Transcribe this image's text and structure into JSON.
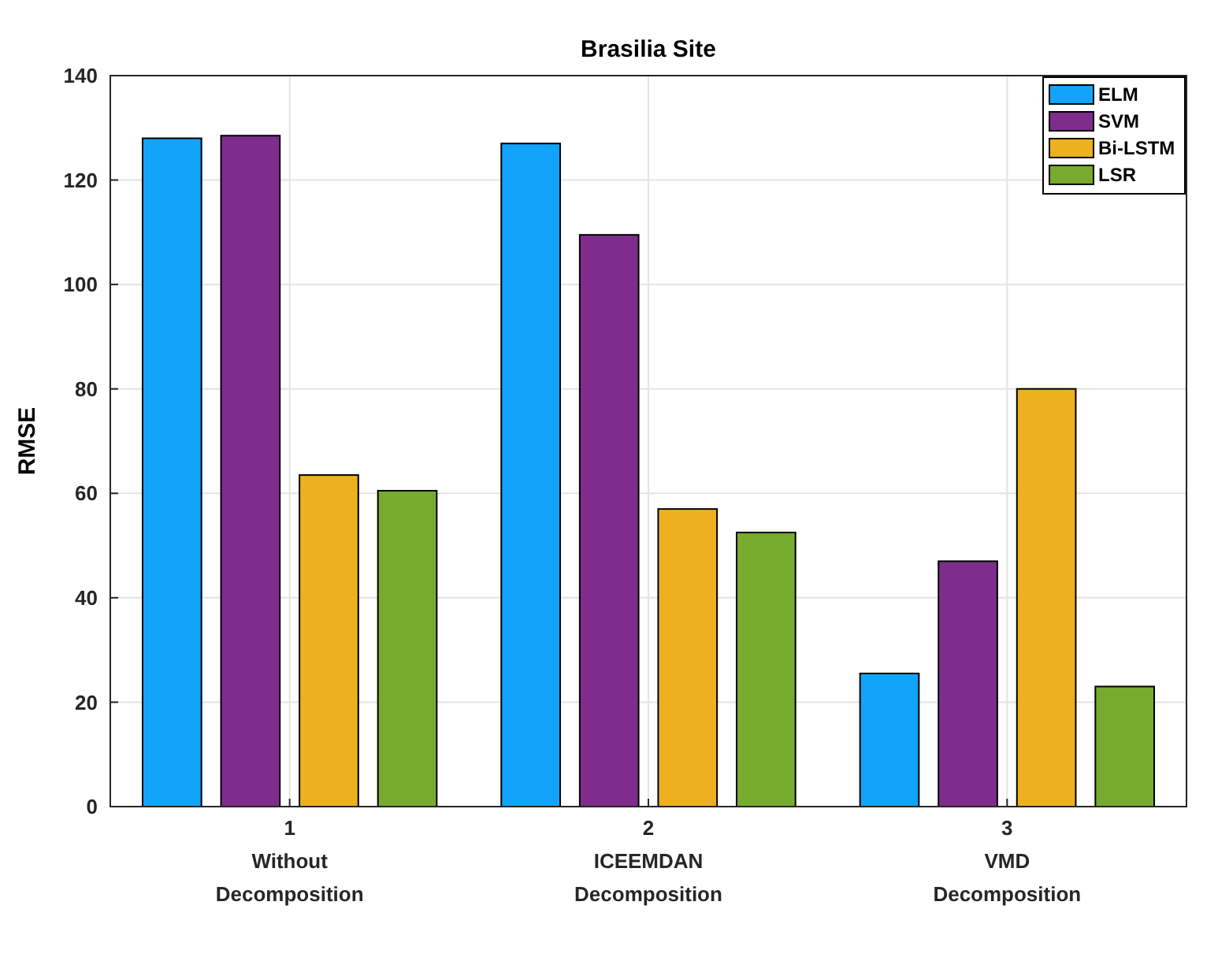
{
  "chart_data": {
    "type": "bar",
    "title": "Brasilia Site",
    "ylabel": "RMSE",
    "categories": [
      "1\nWithout\nDecomposition",
      "2\nICEEMDAN\nDecomposition",
      "3\nVMD\nDecomposition"
    ],
    "series": [
      {
        "name": "ELM",
        "color": "#12a3fc",
        "values": [
          128,
          127,
          25.5
        ]
      },
      {
        "name": "SVM",
        "color": "#7e2d8d",
        "values": [
          128.5,
          109.5,
          47
        ]
      },
      {
        "name": "Bi-LSTM",
        "color": "#edb11f",
        "values": [
          63.5,
          57,
          80
        ]
      },
      {
        "name": "LSR",
        "color": "#76ab2f",
        "values": [
          60.5,
          52.5,
          23
        ]
      }
    ],
    "ylim": [
      0,
      140
    ],
    "yticks": [
      0,
      20,
      40,
      60,
      80,
      100,
      120,
      140
    ],
    "grid": true,
    "legend": "top right"
  }
}
